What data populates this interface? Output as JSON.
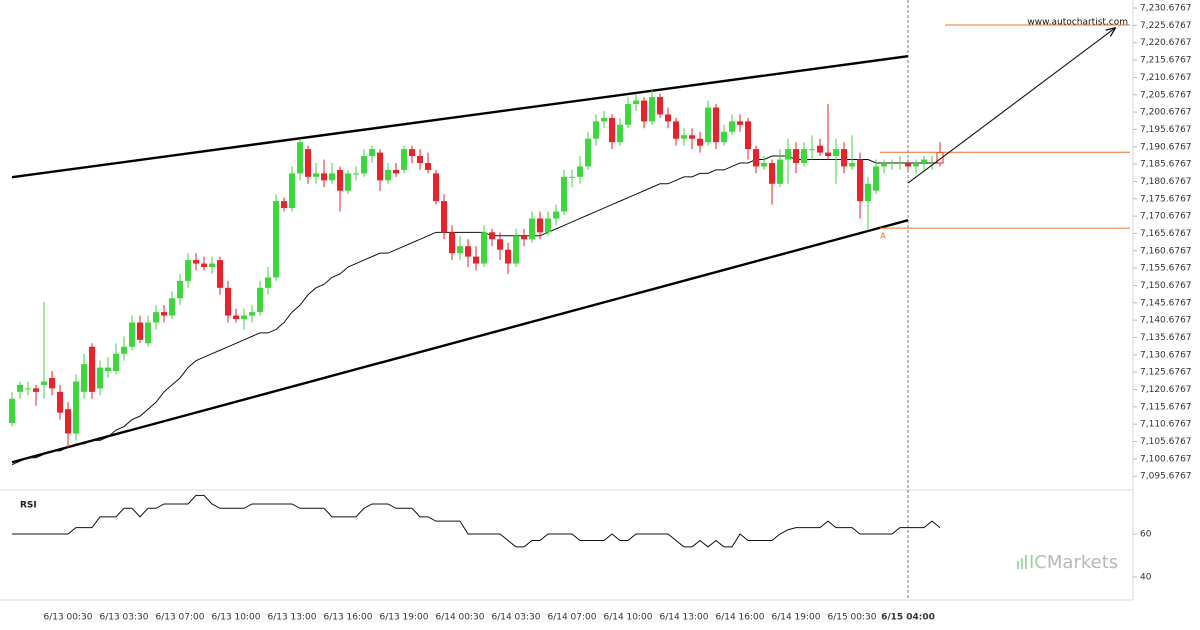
{
  "chart_data": {
    "type": "candlestick",
    "up_color": "#3fd63f",
    "down_color": "#e8222a",
    "ma_color": "#111111",
    "level_color": "#e8742a",
    "categories": [
      null,
      null,
      null,
      null,
      null,
      null,
      null,
      "6/13 00:30",
      null,
      null,
      null,
      null,
      null,
      null,
      "6/13 03:30",
      null,
      null,
      null,
      null,
      null,
      null,
      "6/13 07:00",
      null,
      null,
      null,
      null,
      null,
      null,
      "6/13 10:00",
      null,
      null,
      null,
      null,
      null,
      null,
      "6/13 13:00",
      null,
      null,
      null,
      null,
      null,
      null,
      "6/13 16:00",
      null,
      null,
      null,
      null,
      null,
      null,
      "6/13 19:00",
      null,
      null,
      null,
      null,
      null,
      null,
      "6/14 00:30",
      null,
      null,
      null,
      null,
      null,
      null,
      "6/14 03:30",
      null,
      null,
      null,
      null,
      null,
      null,
      "6/14 07:00",
      null,
      null,
      null,
      null,
      null,
      null,
      "6/14 10:00",
      null,
      null,
      null,
      null,
      null,
      null,
      "6/14 13:00",
      null,
      null,
      null,
      null,
      null,
      null,
      "6/14 16:00",
      null,
      null,
      null,
      null,
      null,
      null,
      "6/14 19:00",
      null,
      null,
      null,
      null,
      null,
      null,
      "6/15 00:30",
      null,
      null,
      null,
      null,
      null,
      null,
      "6/15 04:00",
      null,
      null,
      null,
      null
    ],
    "candles": [
      [
        7111,
        7120,
        7110,
        7118
      ],
      [
        7120,
        7123,
        7118,
        7122
      ],
      [
        7121,
        7123,
        7119,
        7121
      ],
      [
        7121,
        7122,
        7116,
        7120
      ],
      [
        7122,
        7146,
        7118,
        7123
      ],
      [
        7124,
        7126,
        7119,
        7121
      ],
      [
        7120,
        7122,
        7112,
        7114
      ],
      [
        7115,
        7117,
        7104,
        7108
      ],
      [
        7108,
        7125,
        7106,
        7123
      ],
      [
        7120,
        7131,
        7118,
        7128
      ],
      [
        7133,
        7134,
        7118,
        7120
      ],
      [
        7121,
        7129,
        7119,
        7127
      ],
      [
        7126,
        7130,
        7124,
        7127
      ],
      [
        7126,
        7134,
        7125,
        7131
      ],
      [
        7131,
        7136,
        7129,
        7133
      ],
      [
        7133,
        7142,
        7132,
        7140
      ],
      [
        7140,
        7142,
        7134,
        7135
      ],
      [
        7134,
        7142,
        7133,
        7140
      ],
      [
        7140,
        7145,
        7138,
        7143
      ],
      [
        7143,
        7145,
        7140,
        7142
      ],
      [
        7142,
        7149,
        7141,
        7147
      ],
      [
        7147,
        7154,
        7145,
        7152
      ],
      [
        7152,
        7160,
        7150,
        7158
      ],
      [
        7158,
        7160,
        7155,
        7157
      ],
      [
        7157,
        7159,
        7155,
        7156
      ],
      [
        7156,
        7159,
        7154,
        7157
      ],
      [
        7158,
        7159,
        7148,
        7150
      ],
      [
        7150,
        7152,
        7140,
        7142
      ],
      [
        7142,
        7144,
        7140,
        7141
      ],
      [
        7141,
        7144,
        7138,
        7142
      ],
      [
        7142,
        7145,
        7140,
        7143
      ],
      [
        7143,
        7152,
        7142,
        7150
      ],
      [
        7150,
        7156,
        7148,
        7153
      ],
      [
        7153,
        7177,
        7152,
        7175
      ],
      [
        7175,
        7176,
        7172,
        7173
      ],
      [
        7173,
        7185,
        7172,
        7183
      ],
      [
        7183,
        7193,
        7181,
        7192
      ],
      [
        7190,
        7191,
        7180,
        7182
      ],
      [
        7182,
        7186,
        7180,
        7183
      ],
      [
        7183,
        7187,
        7179,
        7181
      ],
      [
        7181,
        7186,
        7180,
        7183
      ],
      [
        7184,
        7185,
        7172,
        7178
      ],
      [
        7178,
        7184,
        7177,
        7183
      ],
      [
        7183,
        7185,
        7181,
        7183
      ],
      [
        7183,
        7190,
        7182,
        7188
      ],
      [
        7188,
        7191,
        7186,
        7190
      ],
      [
        7189,
        7190,
        7178,
        7181
      ],
      [
        7181,
        7186,
        7180,
        7184
      ],
      [
        7184,
        7186,
        7182,
        7183
      ],
      [
        7184,
        7191,
        7183,
        7190
      ],
      [
        7190,
        7191,
        7186,
        7188
      ],
      [
        7188,
        7190,
        7184,
        7186
      ],
      [
        7186,
        7189,
        7183,
        7184
      ],
      [
        7183,
        7184,
        7174,
        7175
      ],
      [
        7175,
        7177,
        7164,
        7166
      ],
      [
        7166,
        7168,
        7158,
        7160
      ],
      [
        7160,
        7165,
        7158,
        7162
      ],
      [
        7162,
        7164,
        7156,
        7159
      ],
      [
        7159,
        7162,
        7155,
        7157
      ],
      [
        7157,
        7168,
        7156,
        7166
      ],
      [
        7166,
        7167,
        7162,
        7164
      ],
      [
        7164,
        7166,
        7158,
        7161
      ],
      [
        7161,
        7163,
        7154,
        7157
      ],
      [
        7157,
        7167,
        7156,
        7165
      ],
      [
        7165,
        7167,
        7162,
        7164
      ],
      [
        7164,
        7172,
        7163,
        7170
      ],
      [
        7170,
        7172,
        7164,
        7166
      ],
      [
        7166,
        7172,
        7165,
        7170
      ],
      [
        7170,
        7174,
        7168,
        7172
      ],
      [
        7172,
        7184,
        7171,
        7182
      ],
      [
        7182,
        7184,
        7179,
        7182
      ],
      [
        7182,
        7188,
        7180,
        7185
      ],
      [
        7185,
        7195,
        7184,
        7193
      ],
      [
        7193,
        7200,
        7191,
        7198
      ],
      [
        7198,
        7201,
        7196,
        7199
      ],
      [
        7199,
        7200,
        7190,
        7192
      ],
      [
        7192,
        7199,
        7191,
        7197
      ],
      [
        7197,
        7205,
        7196,
        7203
      ],
      [
        7203,
        7206,
        7201,
        7204
      ],
      [
        7204,
        7205,
        7196,
        7198
      ],
      [
        7198,
        7207,
        7197,
        7205
      ],
      [
        7205,
        7206,
        7199,
        7200
      ],
      [
        7200,
        7202,
        7196,
        7198
      ],
      [
        7198,
        7199,
        7191,
        7193
      ],
      [
        7193,
        7196,
        7191,
        7194
      ],
      [
        7194,
        7196,
        7190,
        7193
      ],
      [
        7193,
        7195,
        7189,
        7191
      ],
      [
        7192,
        7204,
        7191,
        7202
      ],
      [
        7202,
        7203,
        7190,
        7192
      ],
      [
        7192,
        7197,
        7191,
        7195
      ],
      [
        7195,
        7200,
        7194,
        7198
      ],
      [
        7198,
        7200,
        7195,
        7197
      ],
      [
        7198,
        7199,
        7187,
        7190
      ],
      [
        7190,
        7191,
        7183,
        7185
      ],
      [
        7185,
        7188,
        7184,
        7186
      ],
      [
        7186,
        7187,
        7174,
        7180
      ],
      [
        7180,
        7190,
        7179,
        7187
      ],
      [
        7187,
        7193,
        7180,
        7190
      ],
      [
        7190,
        7192,
        7183,
        7186
      ],
      [
        7186,
        7192,
        7185,
        7190
      ],
      [
        7190,
        7194,
        7187,
        7190
      ],
      [
        7191,
        7193,
        7188,
        7189
      ],
      [
        7189,
        7203,
        7187,
        7188
      ],
      [
        7188,
        7193,
        7180,
        7190
      ],
      [
        7190,
        7192,
        7183,
        7185
      ],
      [
        7185,
        7194,
        7184,
        7186
      ],
      [
        7187,
        7189,
        7170,
        7175
      ],
      [
        7175,
        7182,
        7167,
        7180
      ],
      [
        7178,
        7187,
        7177,
        7185
      ],
      [
        7185,
        7187,
        7183,
        7186
      ],
      [
        7186,
        7187,
        7184,
        7186
      ],
      [
        7186,
        7188,
        7184,
        7186
      ],
      [
        7186,
        7187,
        7184,
        7185
      ],
      [
        7185,
        7187,
        7183,
        7186
      ],
      [
        7186,
        7188,
        7184,
        7187
      ],
      [
        7186,
        7188,
        7184,
        7186
      ],
      [
        7189,
        7192,
        7185,
        7186
      ]
    ],
    "moving_average": {
      "values": [
        7099,
        7100,
        7101,
        7101,
        7102,
        7103,
        7103,
        7104,
        7105,
        7105,
        7106,
        7106,
        7107,
        7109,
        7110,
        7112,
        7113,
        7115,
        7117,
        7120,
        7122,
        7124,
        7127,
        7129,
        7130,
        7131,
        7132,
        7133,
        7134,
        7135,
        7136,
        7137,
        7137,
        7138,
        7140,
        7143,
        7145,
        7148,
        7150,
        7151,
        7153,
        7154,
        7156,
        7157,
        7158,
        7159,
        7160,
        7160,
        7161,
        7162,
        7163,
        7164,
        7165,
        7166,
        7166,
        7166,
        7166,
        7166,
        7166,
        7166,
        7165,
        7165,
        7165,
        7165,
        7165,
        7165,
        7165,
        7166,
        7167,
        7168,
        7169,
        7170,
        7171,
        7172,
        7173,
        7174,
        7175,
        7176,
        7177,
        7178,
        7179,
        7180,
        7180,
        7181,
        7182,
        7182,
        7183,
        7183,
        7184,
        7184,
        7185,
        7186,
        7186,
        7187,
        7187,
        7188,
        7188,
        7188,
        7187,
        7187,
        7187,
        7187,
        7187,
        7187,
        7187,
        7187,
        7187,
        7187,
        7186,
        7186,
        7186,
        7186,
        7186,
        7186,
        7186,
        7186,
        7186
      ]
    },
    "ylim": [
      7091.7,
      7233.0
    ],
    "yticks": [
      {
        "value": 7095.6767,
        "label": "7,095.6767"
      },
      {
        "value": 7100.6767,
        "label": "7,100.6767"
      },
      {
        "value": 7105.6767,
        "label": "7,105.6767"
      },
      {
        "value": 7110.6767,
        "label": "7,110.6767"
      },
      {
        "value": 7115.6767,
        "label": "7,115.6767"
      },
      {
        "value": 7120.6767,
        "label": "7,120.6767"
      },
      {
        "value": 7125.6767,
        "label": "7,125.6767"
      },
      {
        "value": 7130.6767,
        "label": "7,130.6767"
      },
      {
        "value": 7135.6767,
        "label": "7,135.6767"
      },
      {
        "value": 7140.6767,
        "label": "7,140.6767"
      },
      {
        "value": 7145.6767,
        "label": "7,145.6767"
      },
      {
        "value": 7150.6767,
        "label": "7,150.6767"
      },
      {
        "value": 7155.6767,
        "label": "7,155.6767"
      },
      {
        "value": 7160.6767,
        "label": "7,160.6767"
      },
      {
        "value": 7165.6767,
        "label": "7,165.6767"
      },
      {
        "value": 7170.6767,
        "label": "7,170.6767"
      },
      {
        "value": 7175.6767,
        "label": "7,175.6767"
      },
      {
        "value": 7180.6767,
        "label": "7,180.6767"
      },
      {
        "value": 7185.6767,
        "label": "7,185.6767"
      },
      {
        "value": 7190.6767,
        "label": "7,190.6767"
      },
      {
        "value": 7195.6767,
        "label": "7,195.6767"
      },
      {
        "value": 7200.6767,
        "label": "7,200.6767"
      },
      {
        "value": 7205.6767,
        "label": "7,205.6767"
      },
      {
        "value": 7210.6767,
        "label": "7,210.6767"
      },
      {
        "value": 7215.6767,
        "label": "7,215.6767"
      },
      {
        "value": 7220.6767,
        "label": "7,220.6767"
      },
      {
        "value": 7225.6767,
        "label": "7,225.6767"
      },
      {
        "value": 7230.6767,
        "label": "7,230.6767"
      }
    ],
    "trendlines": [
      [
        7181.9,
        7216.8
      ],
      [
        7099.7,
        7169.5
      ]
    ],
    "levels": [
      7225.8,
      7189.1,
      7167.2
    ],
    "forecast": [
      7180.2,
      7224.9
    ],
    "point_label": "A",
    "watermark": "www.autochartist.com",
    "rsi": {
      "label": "RSI",
      "ylim": [
        29.3,
        80.5
      ],
      "yticks": [
        60,
        40
      ],
      "values": [
        60,
        60,
        60,
        60,
        60,
        60,
        60,
        60,
        63,
        63,
        63,
        68,
        68,
        68,
        72,
        72,
        68,
        72,
        72,
        74,
        74,
        74,
        74,
        78,
        78,
        74,
        72,
        72,
        72,
        72,
        74,
        74,
        74,
        74,
        74,
        74,
        72,
        72,
        72,
        72,
        68,
        68,
        68,
        68,
        72,
        74,
        74,
        74,
        72,
        72,
        72,
        68,
        68,
        66,
        66,
        66,
        66,
        60,
        60,
        60,
        60,
        60,
        57,
        54,
        54,
        57,
        57,
        60,
        60,
        60,
        60,
        57,
        57,
        57,
        57,
        60,
        57,
        57,
        60,
        60,
        60,
        60,
        60,
        57,
        54,
        54,
        57,
        54,
        57,
        54,
        54,
        60,
        57,
        57,
        57,
        57,
        60,
        62,
        63,
        63,
        63,
        63,
        66,
        63,
        63,
        63,
        60,
        60,
        60,
        60,
        60,
        63,
        63,
        63,
        63,
        66,
        63
      ]
    },
    "logo": {
      "prefix": "IC",
      "name": "Markets"
    }
  }
}
